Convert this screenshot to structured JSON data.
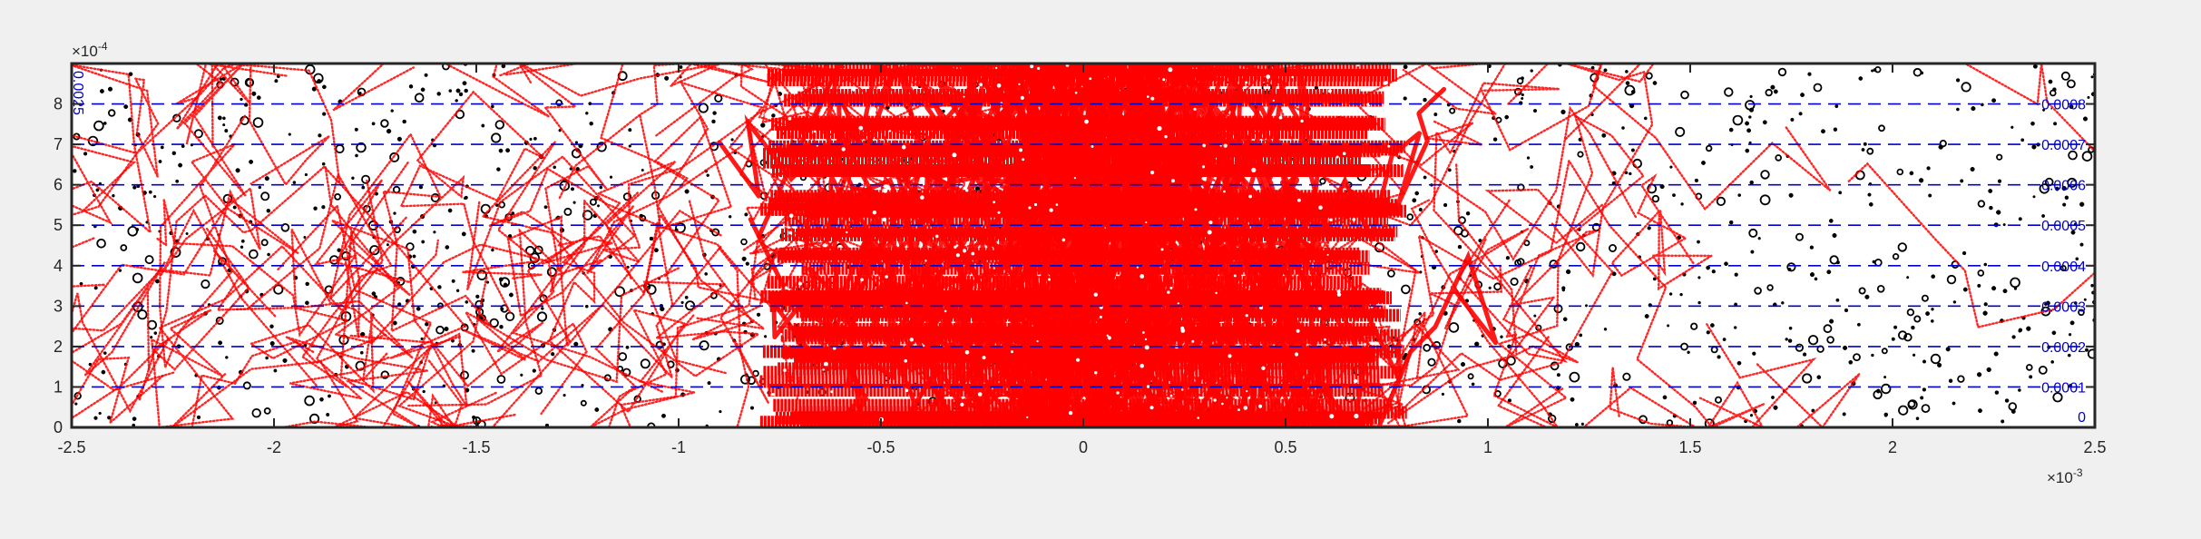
{
  "chart_data": {
    "type": "scatter",
    "title": "",
    "xlabel": "",
    "ylabel": "",
    "xlim": [
      -0.0025,
      0.0025
    ],
    "ylim": [
      0,
      0.0009
    ],
    "x_exponent_label": "×10",
    "x_exponent_power": "-3",
    "y_exponent_label": "×10",
    "y_exponent_power": "-4",
    "x_ticks": [
      -0.0025,
      -0.002,
      -0.0015,
      -0.001,
      -0.0005,
      0,
      0.0005,
      0.001,
      0.0015,
      0.002,
      0.0025
    ],
    "x_tick_labels": [
      "-2.5",
      "-2",
      "-1.5",
      "-1",
      "-0.5",
      "0",
      "0.5",
      "1",
      "1.5",
      "2",
      "2.5"
    ],
    "y_ticks": [
      0,
      0.0001,
      0.0002,
      0.0003,
      0.0004,
      0.0005,
      0.0006,
      0.0007,
      0.0008
    ],
    "y_tick_labels": [
      "0",
      "1",
      "2",
      "3",
      "4",
      "5",
      "6",
      "7",
      "8"
    ],
    "contour_levels": [
      0.0001,
      0.0002,
      0.0003,
      0.0004,
      0.0005,
      0.0006,
      0.0007,
      0.0008
    ],
    "contour_labels_right": [
      "0.0001",
      "0.0002",
      "0.0003",
      "0.0004",
      "0.0005",
      "0.0006",
      "0.0007",
      "0.0008"
    ],
    "contour_label_left_top": "0.0025",
    "contour_label_right_bottom": "0",
    "particle_region": {
      "x_range": [
        -0.0025,
        0.0025
      ],
      "y_range": [
        0,
        0.0009
      ]
    },
    "trajectory_core_x_range": [
      -0.0008,
      0.0008
    ],
    "trajectory_spread_x_range": [
      -0.0025,
      0.0019
    ],
    "grid": false,
    "series": [],
    "colors": {
      "particles": "#000000",
      "trajectories": "#ff0000",
      "contours": "#0000cc",
      "axes_bg": "#ffffff",
      "figure_bg": "#f0f0f0"
    }
  }
}
